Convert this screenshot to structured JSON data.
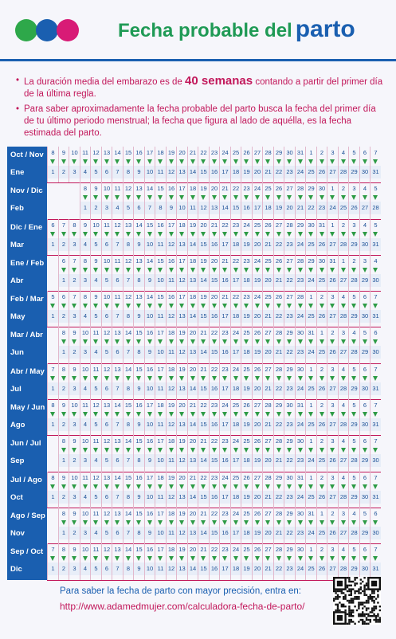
{
  "header": {
    "title_prefix": "Fecha probable del",
    "title_emph": "parto",
    "dot_colors": [
      "#2ea84a",
      "#1a5fb0",
      "#d81b76"
    ]
  },
  "intro": {
    "bullet1_pre": "La duración media del embarazo es de",
    "bullet1_bold": "40 semanas",
    "bullet1_post": "contando a partir del primer día de la última regla.",
    "bullet2": "Para saber aproximadamente la fecha probable del parto busca la fecha del primer día de tu último periodo menstrual; la fecha que figura al lado de aquélla, es la fecha estimada del parto."
  },
  "rows": [
    {
      "lmp": "Oct / Nov",
      "due": "Ene",
      "top_start": 8,
      "top_max": 31,
      "bot_start": 1,
      "bot_max": 31
    },
    {
      "lmp": "Nov / Dic",
      "due": "Feb",
      "top_start": 8,
      "top_max": 30,
      "bot_start": 1,
      "bot_max": 28
    },
    {
      "lmp": "Dic / Ene",
      "due": "Mar",
      "top_start": 6,
      "top_max": 31,
      "bot_start": 1,
      "bot_max": 31
    },
    {
      "lmp": "Ene / Feb",
      "due": "Abr",
      "top_start": 6,
      "top_max": 31,
      "bot_start": 1,
      "bot_max": 30
    },
    {
      "lmp": "Feb / Mar",
      "due": "May",
      "top_start": 5,
      "top_max": 28,
      "bot_start": 1,
      "bot_max": 31
    },
    {
      "lmp": "Mar / Abr",
      "due": "Jun",
      "top_start": 8,
      "top_max": 31,
      "bot_start": 1,
      "bot_max": 30
    },
    {
      "lmp": "Abr / May",
      "due": "Jul",
      "top_start": 7,
      "top_max": 30,
      "bot_start": 1,
      "bot_max": 31
    },
    {
      "lmp": "May / Jun",
      "due": "Ago",
      "top_start": 8,
      "top_max": 31,
      "bot_start": 1,
      "bot_max": 31
    },
    {
      "lmp": "Jun / Jul",
      "due": "Sep",
      "top_start": 8,
      "top_max": 30,
      "bot_start": 1,
      "bot_max": 30
    },
    {
      "lmp": "Jul / Ago",
      "due": "Oct",
      "top_start": 8,
      "top_max": 31,
      "bot_start": 1,
      "bot_max": 31
    },
    {
      "lmp": "Ago / Sep",
      "due": "Nov",
      "top_start": 8,
      "top_max": 31,
      "bot_start": 1,
      "bot_max": 30
    },
    {
      "lmp": "Sep / Oct",
      "due": "Dic",
      "top_start": 7,
      "top_max": 30,
      "bot_start": 1,
      "bot_max": 31
    }
  ],
  "footer": {
    "line1": "Para saber la fecha de parto con mayor precisión, entra en:",
    "url": "http://www.adamedmujer.com/calculadora-fecha-de-parto/"
  },
  "icons": {
    "qr": "qr-code-icon",
    "arrow": "down-arrow-icon"
  }
}
